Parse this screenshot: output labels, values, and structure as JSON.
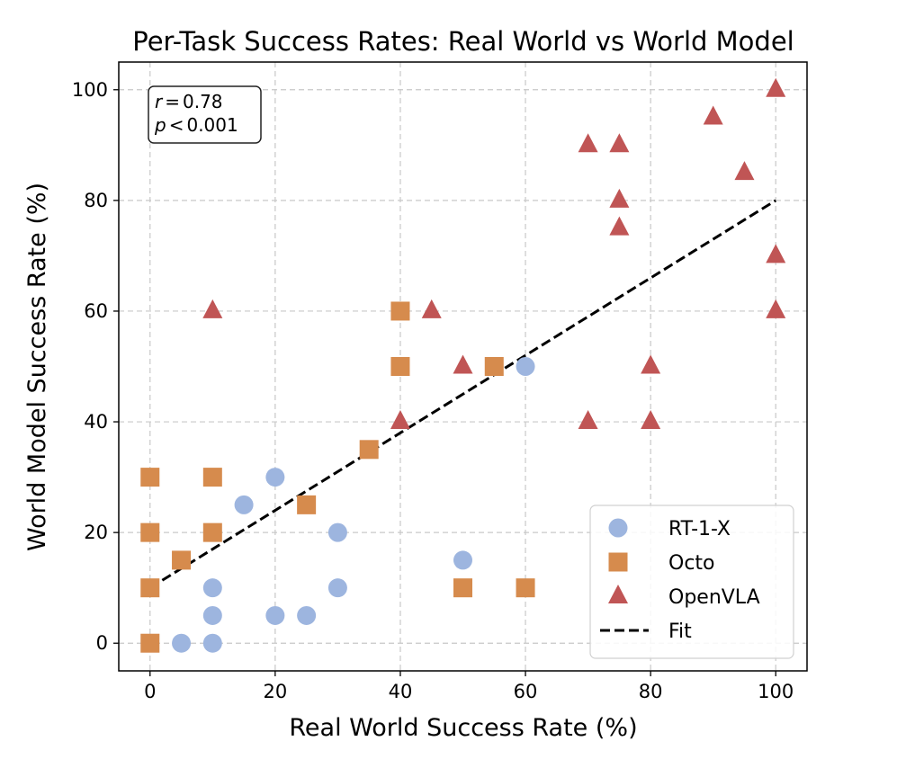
{
  "chart_data": {
    "type": "scatter",
    "title": "Per-Task Success Rates: Real World vs World Model",
    "xlabel": "Real World Success Rate (%)",
    "ylabel": "World Model Success Rate (%)",
    "xlim": [
      -5,
      105
    ],
    "ylim": [
      -5,
      105
    ],
    "xticks": [
      0,
      20,
      40,
      60,
      80,
      100
    ],
    "yticks": [
      0,
      20,
      40,
      60,
      80,
      100
    ],
    "grid": true,
    "legend_position": "bottom-right",
    "annotation": {
      "position": "top-left",
      "lines": [
        {
          "var": "r",
          "op": "=",
          "value": "0.78"
        },
        {
          "var": "p",
          "op": "<",
          "value": "0.001"
        }
      ]
    },
    "series": [
      {
        "name": "RT-1-X",
        "marker": "circle",
        "color": "#9db5df",
        "points": [
          [
            5,
            0
          ],
          [
            10,
            0
          ],
          [
            10,
            5
          ],
          [
            20,
            5
          ],
          [
            25,
            5
          ],
          [
            10,
            10
          ],
          [
            30,
            10
          ],
          [
            50,
            15
          ],
          [
            30,
            20
          ],
          [
            15,
            25
          ],
          [
            20,
            30
          ],
          [
            60,
            50
          ]
        ]
      },
      {
        "name": "Octo",
        "marker": "square",
        "color": "#d68b4d",
        "points": [
          [
            0,
            0
          ],
          [
            0,
            10
          ],
          [
            5,
            15
          ],
          [
            0,
            20
          ],
          [
            10,
            20
          ],
          [
            25,
            25
          ],
          [
            0,
            30
          ],
          [
            10,
            30
          ],
          [
            35,
            35
          ],
          [
            40,
            50
          ],
          [
            55,
            50
          ],
          [
            40,
            60
          ],
          [
            50,
            10
          ],
          [
            60,
            10
          ]
        ]
      },
      {
        "name": "OpenVLA",
        "marker": "triangle",
        "color": "#c05555",
        "points": [
          [
            10,
            60
          ],
          [
            45,
            60
          ],
          [
            40,
            40
          ],
          [
            50,
            50
          ],
          [
            70,
            40
          ],
          [
            80,
            40
          ],
          [
            80,
            50
          ],
          [
            70,
            90
          ],
          [
            75,
            90
          ],
          [
            75,
            80
          ],
          [
            75,
            75
          ],
          [
            90,
            95
          ],
          [
            95,
            85
          ],
          [
            100,
            100
          ],
          [
            100,
            70
          ],
          [
            100,
            60
          ]
        ]
      }
    ],
    "fit": {
      "name": "Fit",
      "style": "dashed",
      "color": "#000000",
      "points": [
        [
          0,
          10
        ],
        [
          100,
          80
        ]
      ]
    }
  }
}
